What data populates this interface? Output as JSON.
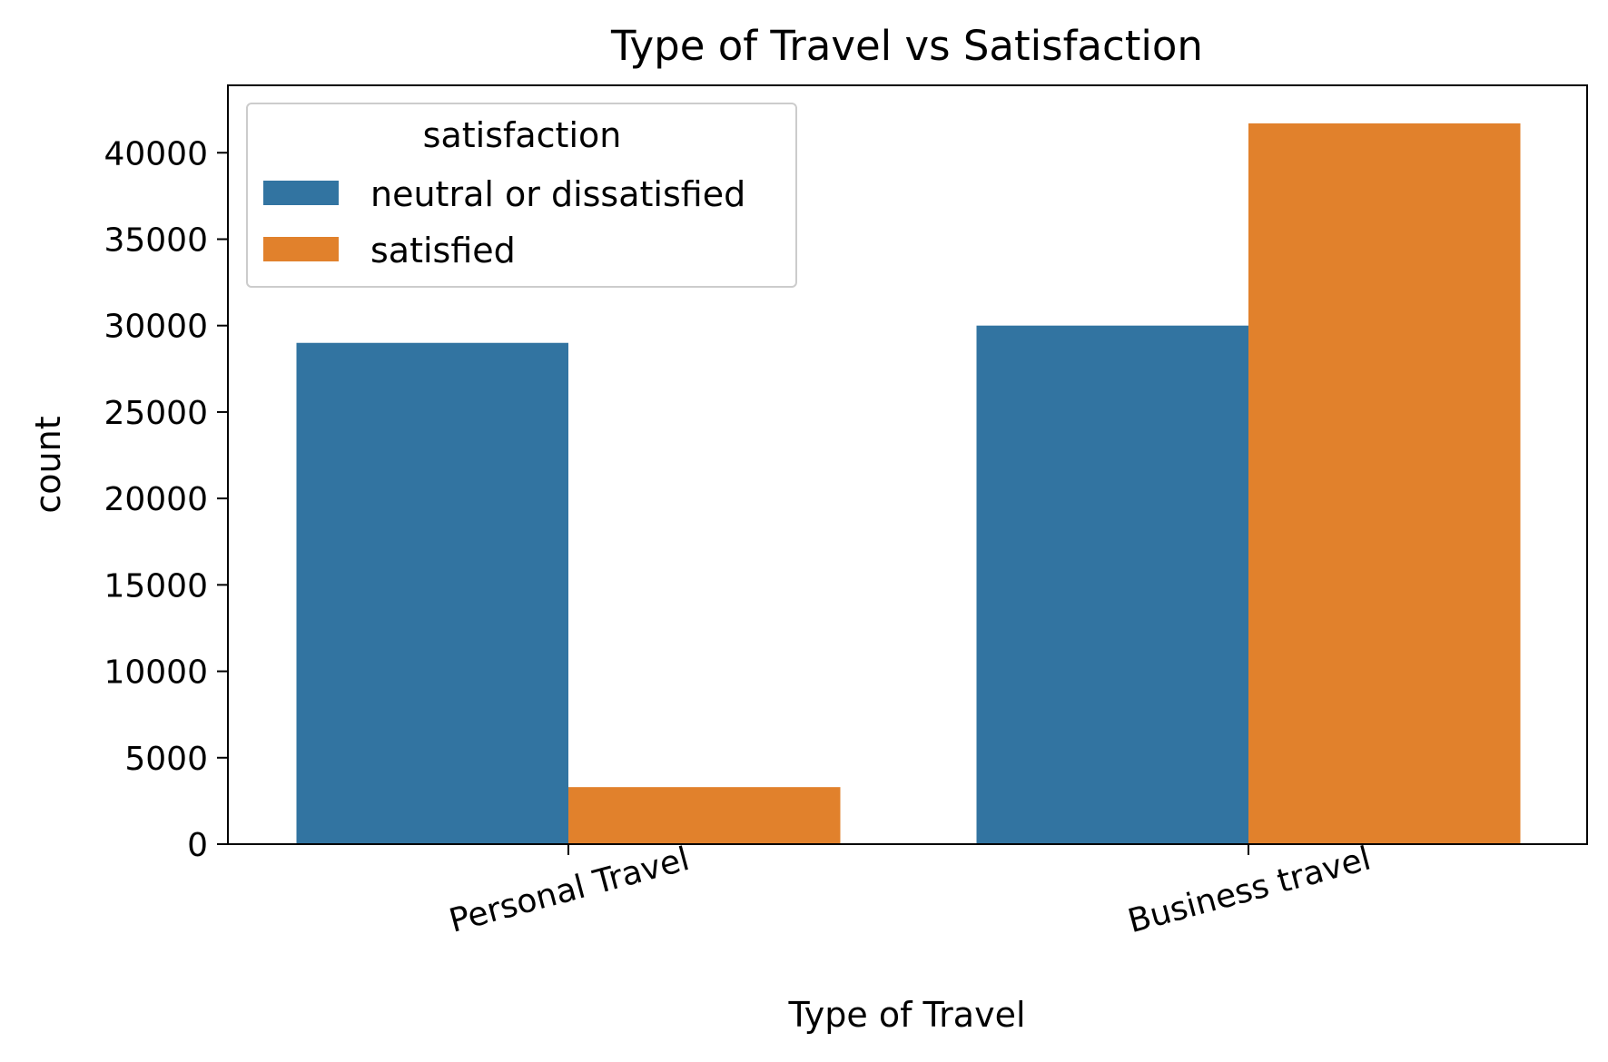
{
  "chart_data": {
    "type": "bar",
    "title": "Type of Travel vs Satisfaction",
    "xlabel": "Type of Travel",
    "ylabel": "count",
    "categories": [
      "Personal Travel",
      "Business travel"
    ],
    "series": [
      {
        "name": "neutral or dissatisfied",
        "color": "#3274a1",
        "values": [
          29000,
          30000
        ]
      },
      {
        "name": "satisfied",
        "color": "#e1812c",
        "values": [
          3300,
          41700
        ]
      }
    ],
    "ylim": [
      0,
      43900
    ],
    "yticks": [
      0,
      5000,
      10000,
      15000,
      20000,
      25000,
      30000,
      35000,
      40000
    ],
    "grid": false,
    "legend": {
      "title": "satisfaction",
      "position": "top-left"
    }
  }
}
